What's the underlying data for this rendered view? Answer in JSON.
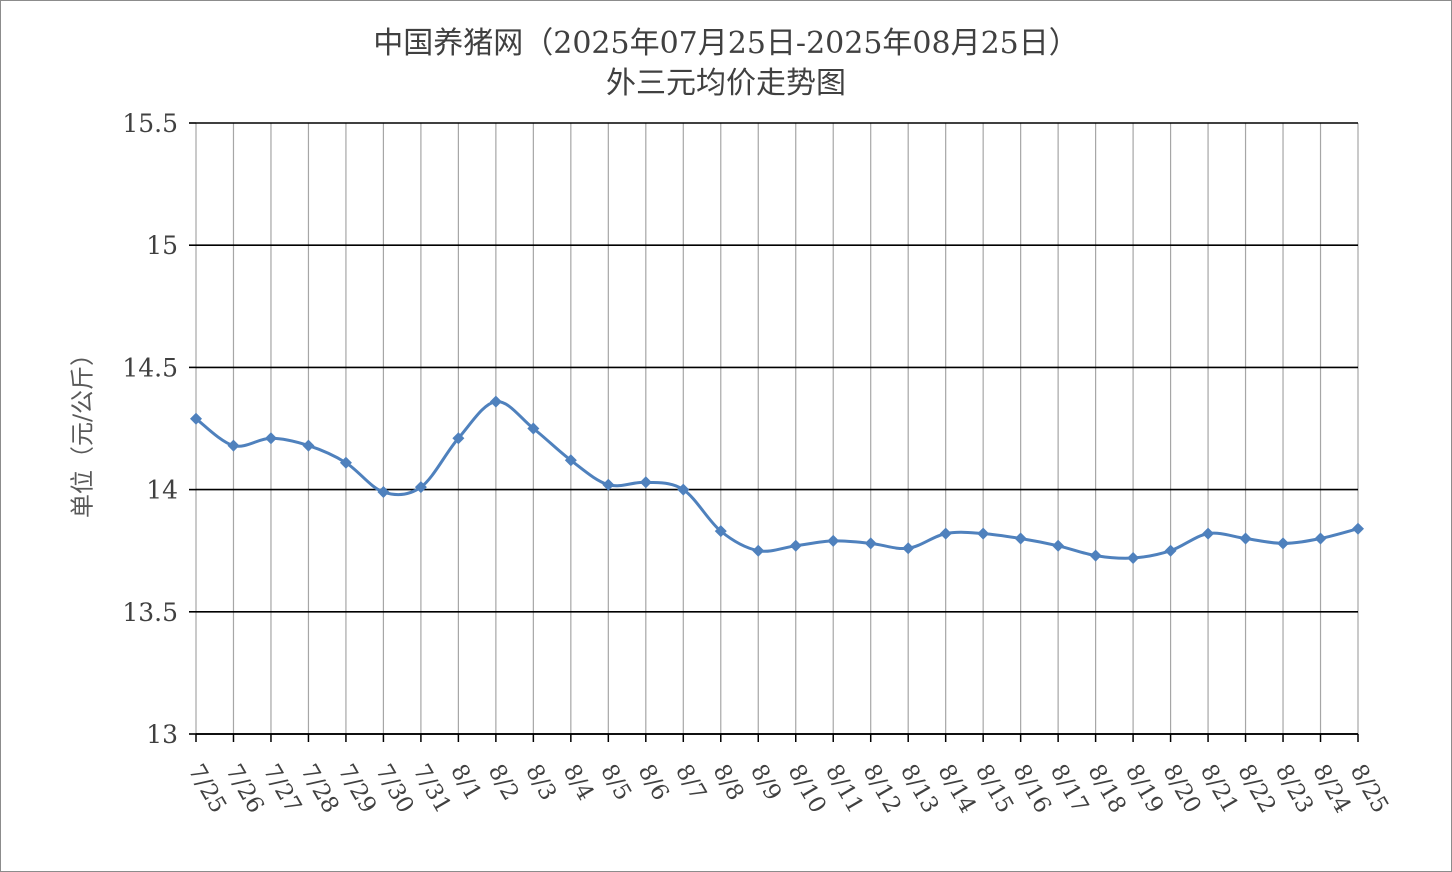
{
  "chart_data": {
    "type": "line",
    "title": "中国养猪网（2025年07月25日-2025年08月25日）",
    "subtitle": "外三元均价走势图",
    "ylabel": "单位（元/公斤）",
    "xlabel": "",
    "ylim": [
      13,
      15.5
    ],
    "yticks": [
      13,
      13.5,
      14,
      14.5,
      15,
      15.5
    ],
    "ytick_labels": [
      "13",
      "13.5",
      "14",
      "14.5",
      "15",
      "15.5"
    ],
    "categories": [
      "7/25",
      "7/26",
      "7/27",
      "7/28",
      "7/29",
      "7/30",
      "7/31",
      "8/1",
      "8/2",
      "8/3",
      "8/4",
      "8/5",
      "8/6",
      "8/7",
      "8/8",
      "8/9",
      "8/10",
      "8/11",
      "8/12",
      "8/13",
      "8/14",
      "8/15",
      "8/16",
      "8/17",
      "8/18",
      "8/19",
      "8/20",
      "8/21",
      "8/22",
      "8/23",
      "8/24",
      "8/25"
    ],
    "series": [
      {
        "values": [
          14.29,
          14.18,
          14.21,
          14.18,
          14.11,
          13.99,
          14.01,
          14.21,
          14.36,
          14.25,
          14.12,
          14.02,
          14.03,
          14.0,
          13.83,
          13.75,
          13.77,
          13.79,
          13.78,
          13.76,
          13.82,
          13.82,
          13.8,
          13.77,
          13.73,
          13.72,
          13.75,
          13.82,
          13.8,
          13.78,
          13.8,
          13.84
        ]
      }
    ],
    "grid": true,
    "line_color": "#4f81bd",
    "grid_color": "#000000",
    "vgrid_color": "#a6a6a6"
  }
}
